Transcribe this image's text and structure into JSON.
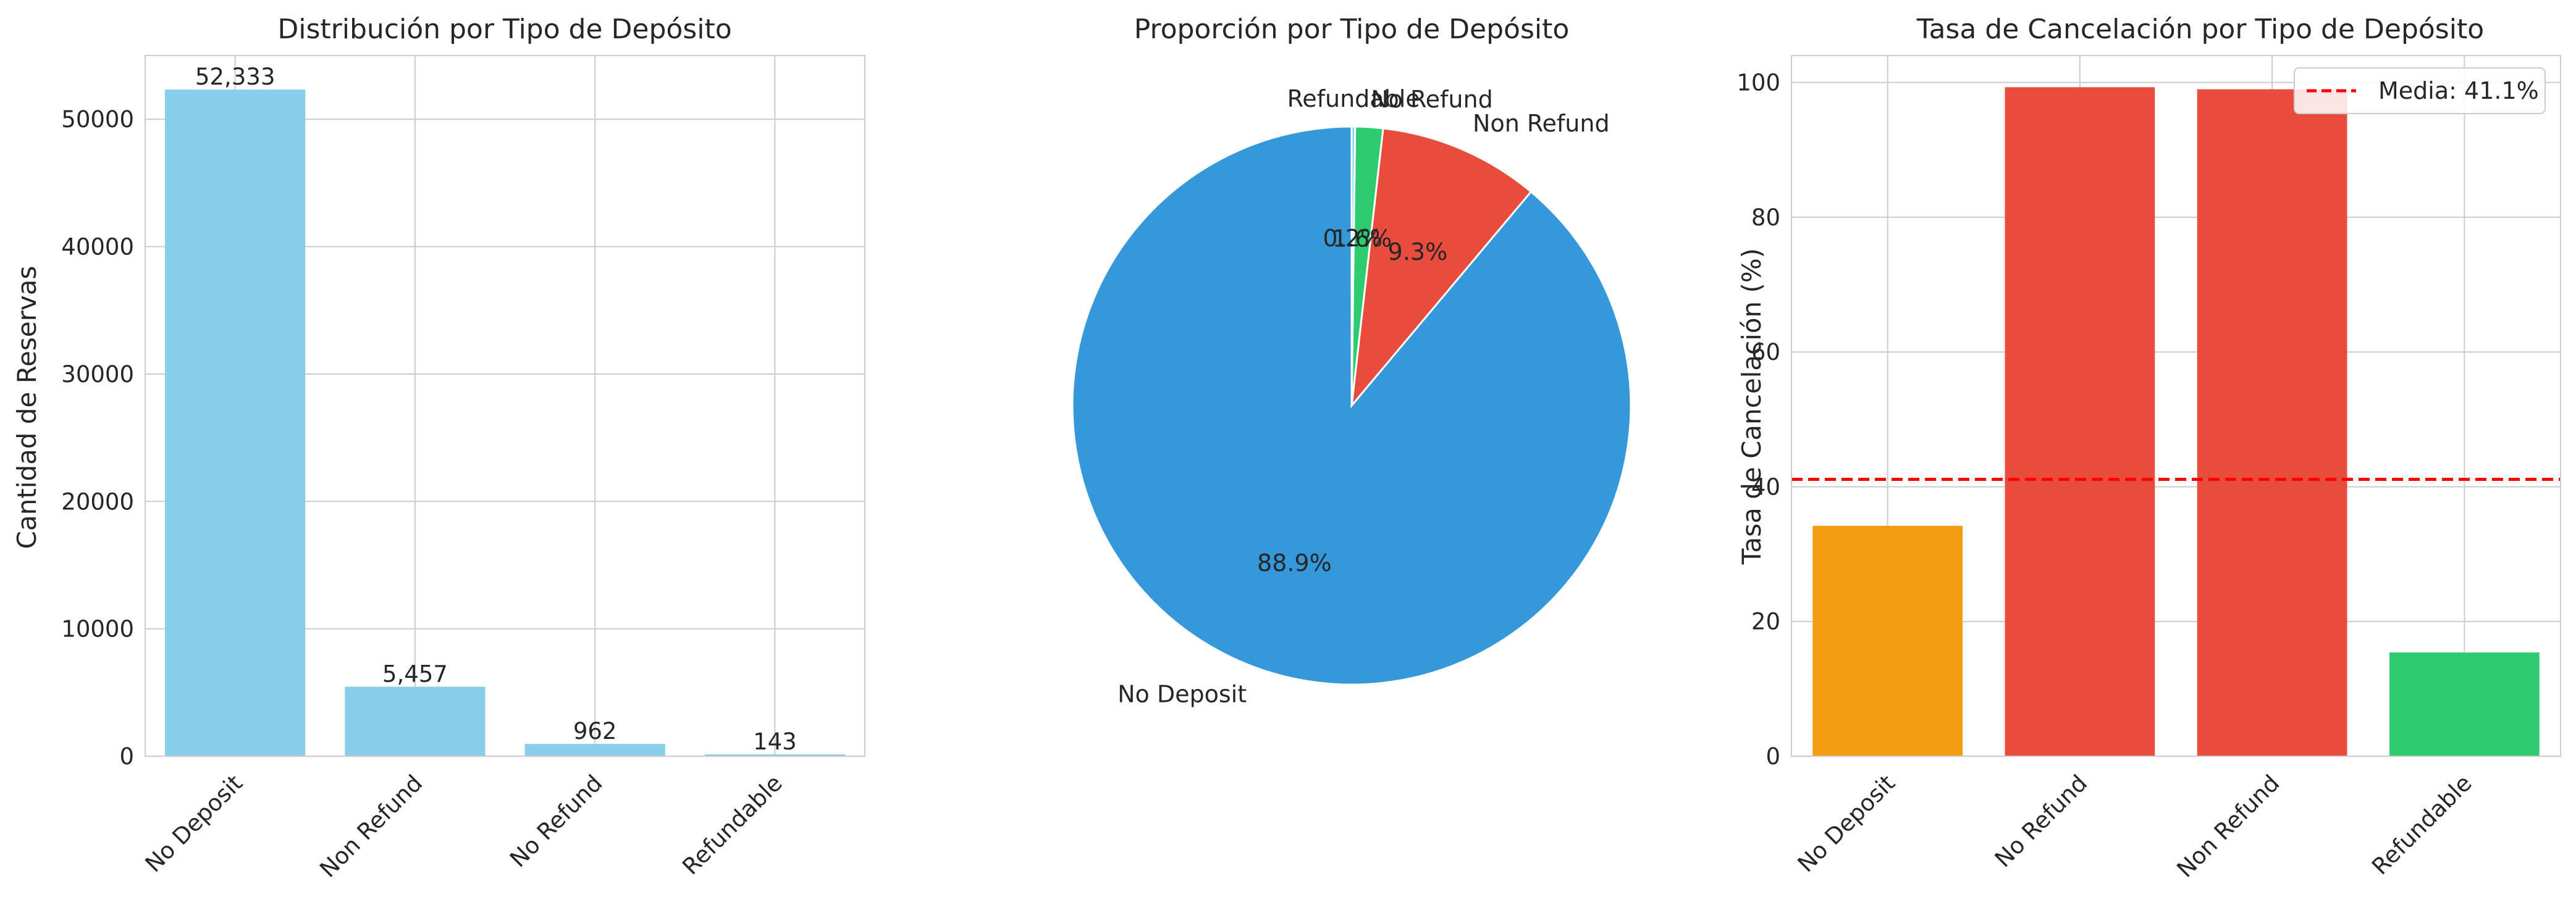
{
  "colors": {
    "bar_light": "#87CEEB",
    "blue": "#3498DB",
    "red": "#E74C3C",
    "green": "#2ECC71",
    "orange": "#F39C12",
    "mean_line": "#FF0000",
    "grid": "#CCCCCC"
  },
  "chart_data": [
    {
      "type": "bar",
      "title": "Distribución por Tipo de Depósito",
      "xlabel": "",
      "ylabel": "Cantidad de Reservas",
      "categories": [
        "No Deposit",
        "Non Refund",
        "No Refund",
        "Refundable"
      ],
      "values": [
        52333,
        5457,
        962,
        143
      ],
      "value_labels": [
        "52,333",
        "5,457",
        "962",
        "143"
      ],
      "ylim": [
        0,
        55000
      ],
      "yticks": [
        0,
        10000,
        20000,
        30000,
        40000,
        50000
      ],
      "grid": true,
      "color": "#87CEEB"
    },
    {
      "type": "pie",
      "title": "Proporción por Tipo de Depósito",
      "labels": [
        "No Deposit",
        "Non Refund",
        "No Refund",
        "Refundable"
      ],
      "values": [
        88.9,
        9.3,
        1.6,
        0.2
      ],
      "pct_labels": [
        "88.9%",
        "9.3%",
        "1.6%",
        "0.2%"
      ],
      "colors": [
        "#3498DB",
        "#E74C3C",
        "#2ECC71",
        "#87CEEB"
      ],
      "start_angle": 90,
      "direction": "counterclockwise"
    },
    {
      "type": "bar",
      "title": "Tasa de Cancelación por Tipo de Depósito",
      "xlabel": "",
      "ylabel": "Tasa de Cancelación (%)",
      "categories": [
        "No Deposit",
        "No Refund",
        "Non Refund",
        "Refundable"
      ],
      "values": [
        34.2,
        99.3,
        99.0,
        15.4
      ],
      "colors": [
        "#F39C12",
        "#E74C3C",
        "#E74C3C",
        "#2ECC71"
      ],
      "ylim": [
        0,
        104
      ],
      "yticks": [
        0,
        20,
        40,
        60,
        80,
        100
      ],
      "grid": true,
      "mean_line": {
        "value": 41.1,
        "label": "Media: 41.1%"
      },
      "legend": "top-right"
    }
  ]
}
